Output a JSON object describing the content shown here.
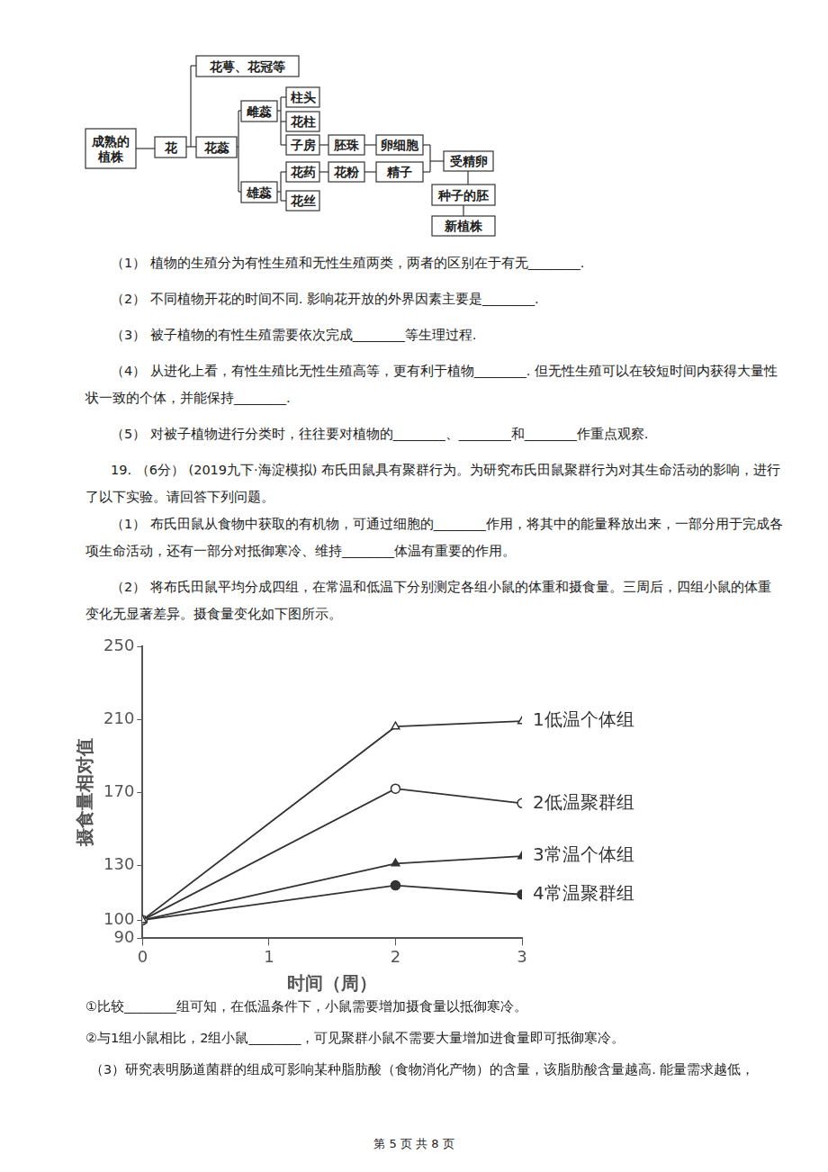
{
  "diagram": {
    "nodes": [
      "成熟的\n植株",
      "花",
      "花萼、花冠等",
      "花蕊",
      "雌蕊",
      "雄蕊",
      "柱头",
      "花柱",
      "子房",
      "花药",
      "花丝",
      "胚珠",
      "花粉",
      "卵细胞",
      "精子",
      "受精卵",
      "种子的胚",
      "新植株"
    ]
  },
  "questions_before_chart": [
    "（1） 植物的生殖分为有性生殖和无性生殖两类，两者的区别在于有无________.",
    "（2） 不同植物开花的时间不同. 影响花开放的外界因素主要是________.",
    "（3） 被子植物的有性生殖需要依次完成________等生理过程.",
    "（4） 从进化上看，有性生殖比无性生殖高等，更有利于植物________. 但无性生殖可以在较短时间内获得大量性状一致的个体，并能保持________.",
    "（5） 对被子植物进行分类时，往往要对植物的________、________和________作重点观察.",
    "19. （6分） (2019九下·海淀模拟) 布氏田鼠具有聚群行为。为研究布氏田鼠聚群行为对其生命活动的影响，进行了以下实验。请回答下列问题。",
    "（1） 布氏田鼠从食物中获取的有机物，可通过细胞的________作用，将其中的能量释放出来，一部分用于完成各项生命活动，还有一部分对抵御寒冷、维持________体温有重要的作用。",
    "（2） 将布氏田鼠平均分成四组，在常温和低温下分别测定各组小鼠的体重和摄食量。三周后，四组小鼠的体重变化无显著差异。摄食量变化如下图所示。"
  ],
  "chart_data": {
    "type": "line",
    "x_label": "时间（周）",
    "y_label": "摄食量相对值",
    "x": [
      0,
      2,
      3
    ],
    "xlim": [
      0,
      3
    ],
    "xticks": [
      0,
      1,
      2,
      3
    ],
    "ylim": [
      90,
      250
    ],
    "yticks": [
      90,
      100,
      130,
      170,
      210,
      250
    ],
    "grid": false,
    "series": [
      {
        "name": "1低温个体组",
        "color": "#333333",
        "marker": "triangle_open",
        "values": [
          100,
          206,
          209
        ]
      },
      {
        "name": "2低温聚群组",
        "color": "#333333",
        "marker": "circle_open",
        "values": [
          100,
          172,
          164
        ]
      },
      {
        "name": "3常温个体组",
        "color": "#333333",
        "marker": "triangle",
        "values": [
          100,
          131,
          135
        ]
      },
      {
        "name": "4常温聚群组",
        "color": "#333333",
        "marker": "circle",
        "values": [
          100,
          119,
          114
        ]
      }
    ]
  },
  "questions_after_chart": [
    "①比较________组可知，在低温条件下，小鼠需要增加摄食量以抵御寒冷。",
    "②与1组小鼠相比，2组小鼠________，可见聚群小鼠不需要大量增加进食量即可抵御寒冷。",
    "（3）研究表明肠道菌群的组成可影响某种脂肪酸（食物消化产物）的含量，该脂肪酸含量越高. 能量需求越低，"
  ],
  "footer": "第 5 页 共 8 页"
}
